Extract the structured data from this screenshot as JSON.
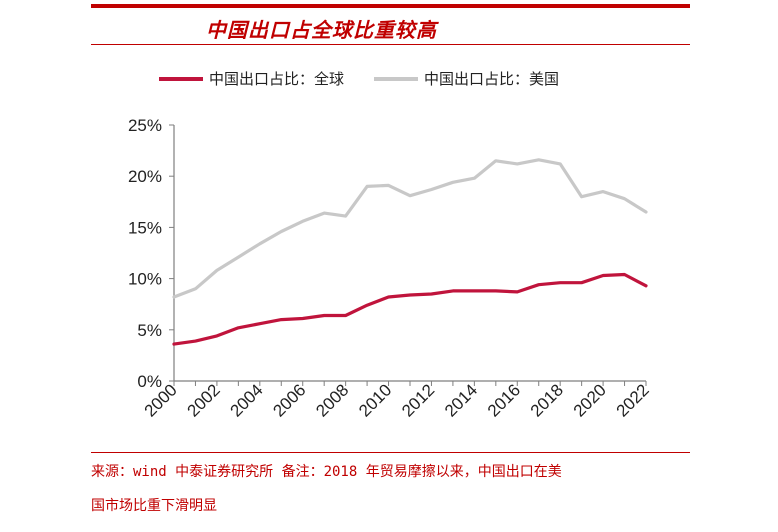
{
  "header": {
    "title": "中国出口占全球比重较高"
  },
  "colors": {
    "accent": "#c00000",
    "series_global": "#c0143c",
    "series_us": "#c8c8c8"
  },
  "chart_data": {
    "type": "line",
    "title": "中国出口占全球比重较高",
    "xlabel": "",
    "ylabel": "",
    "ylim": [
      0,
      25
    ],
    "y_ticks": [
      "0%",
      "5%",
      "10%",
      "15%",
      "20%",
      "25%"
    ],
    "x_ticks": [
      "2000",
      "2002",
      "2004",
      "2006",
      "2008",
      "2010",
      "2012",
      "2014",
      "2016",
      "2018",
      "2020",
      "2022"
    ],
    "grid": false,
    "legend": "top",
    "x": [
      2000,
      2001,
      2002,
      2003,
      2004,
      2005,
      2006,
      2007,
      2008,
      2009,
      2010,
      2011,
      2012,
      2013,
      2014,
      2015,
      2016,
      2017,
      2018,
      2019,
      2020,
      2021,
      2022
    ],
    "series": [
      {
        "name": "中国出口占比：全球",
        "color": "#c0143c",
        "values": [
          3.6,
          3.9,
          4.4,
          5.2,
          5.6,
          6.0,
          6.1,
          6.4,
          6.4,
          7.4,
          8.2,
          8.4,
          8.5,
          8.8,
          8.8,
          8.8,
          8.7,
          9.4,
          9.6,
          9.6,
          10.3,
          10.4,
          9.3
        ]
      },
      {
        "name": "中国出口占比：美国",
        "color": "#c8c8c8",
        "values": [
          8.2,
          9.0,
          10.8,
          12.1,
          13.4,
          14.6,
          15.6,
          16.4,
          16.1,
          19.0,
          19.1,
          18.1,
          18.7,
          19.4,
          19.8,
          21.5,
          21.2,
          21.6,
          21.2,
          18.0,
          18.5,
          17.8,
          16.5
        ]
      }
    ]
  },
  "footer": {
    "source_line1": "来源：wind 中泰证券研究所 备注：2018 年贸易摩擦以来，中国出口在美",
    "source_line2": "国市场比重下滑明显"
  }
}
